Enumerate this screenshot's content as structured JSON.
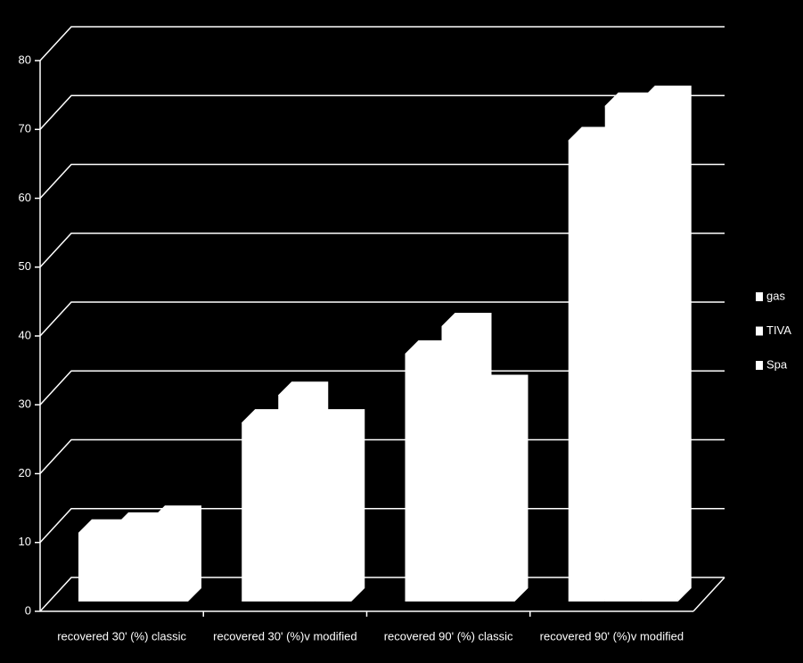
{
  "chart_data": {
    "type": "bar3d",
    "categories": [
      "recovered 30' (%) classic",
      "recovered 30' (%)v modified",
      "recovered 90' (%) classic",
      "recovered 90' (%)v modified"
    ],
    "series": [
      {
        "name": "gas",
        "color": "#ffffff",
        "values": [
          10,
          26,
          36,
          67
        ]
      },
      {
        "name": "TIVA",
        "color": "#ffffff",
        "values": [
          11,
          30,
          40,
          72
        ]
      },
      {
        "name": "Spa",
        "color": "#ffffff",
        "values": [
          12,
          26,
          31,
          73
        ]
      }
    ],
    "ylim": [
      0,
      80
    ],
    "yticks": [
      0,
      10,
      20,
      30,
      40,
      50,
      60,
      70,
      80
    ],
    "grid": true,
    "legend": "right"
  }
}
